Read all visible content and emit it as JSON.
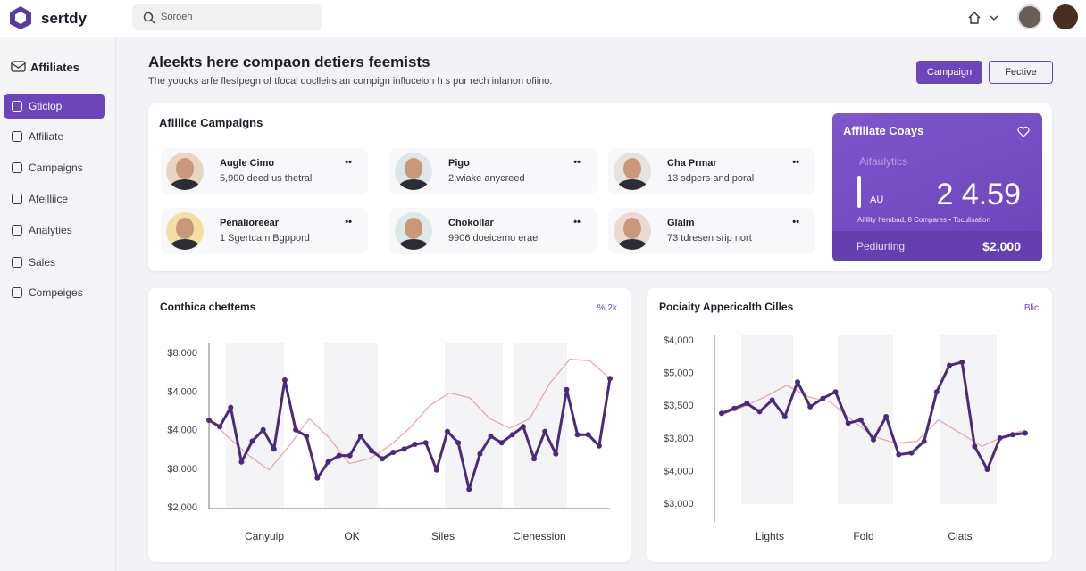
{
  "header": {
    "logo": "sertdy",
    "search_placeholder": "Soroeh"
  },
  "sidebar": {
    "heading": "Affiliates",
    "active": 0,
    "items": [
      "Gticlop",
      "Affiliate",
      "Campaigns",
      "Afeilliice",
      "Analyties",
      "Sales",
      "Compeiges"
    ]
  },
  "page": {
    "title": "Aleekts here compaon detiers feemists",
    "subtitle": "The youcks arfe flesfpegn of tfocal doclleirs an compign influceion h s pur rech inlanon ofiino.",
    "buttons": [
      "Campaign",
      "Fective"
    ]
  },
  "campaigns": {
    "title": "Afillice Campaigns",
    "items": [
      {
        "name": "Augle Cimo",
        "description": "5,900 deed us thetral"
      },
      {
        "name": "Pigo",
        "description": "2,wiake anycreed"
      },
      {
        "name": "Cha Prmar",
        "description": "13 sdpers and poral"
      },
      {
        "name": "Penalioreear",
        "description": "1 Sgertcam Bgppord"
      },
      {
        "name": "Chokollar",
        "description": "9906 doeicemo erael"
      },
      {
        "name": "Glalm",
        "description": "73 tdresen srip nort"
      }
    ]
  },
  "summary": {
    "title": "Affiliate Coays",
    "label": "Aifaulytics",
    "tag": "AU",
    "value": "2 4.59",
    "caption": "Aifility Ifembad, 8 Compares • Toculisation",
    "footer_label": "Pediurting",
    "footer_value": "$2,000"
  },
  "charts": [
    {
      "type": "line",
      "title": "Conthica chettems",
      "corner": "%,2k",
      "y_labels": [
        "$8,000",
        "$4,000",
        "$4,000",
        "$8,000",
        "$2,000"
      ],
      "categories": [
        "Canyuip",
        "OK",
        "Siles",
        "Clenession"
      ],
      "ylim": [
        0,
        100
      ],
      "series": [
        {
          "color": "#e3a4ae",
          "markers": false,
          "values": [
            56,
            44,
            33,
            24,
            39,
            56,
            44,
            28,
            31,
            39,
            50,
            64,
            72,
            69,
            56,
            50,
            56,
            78,
            93,
            92,
            81
          ]
        },
        {
          "color": "#4b2a7b",
          "markers": true,
          "values": [
            55,
            51,
            63,
            29,
            42,
            49,
            37,
            80,
            49,
            45,
            19,
            29,
            33,
            33,
            45,
            36,
            31,
            35,
            37,
            40,
            41,
            24,
            48,
            41,
            12,
            34,
            45,
            41,
            46,
            51,
            31,
            48,
            34,
            74,
            46,
            46,
            39,
            81
          ]
        }
      ]
    },
    {
      "type": "line",
      "title": "Pociaity Appericalth Cilles",
      "corner": "Blic",
      "y_labels": [
        "$4,000",
        "$5,000",
        "$3,500",
        "$3,800",
        "$4,000",
        "$3,000"
      ],
      "categories": [
        "Lights",
        "Fold",
        "Clats"
      ],
      "ylim": [
        0,
        100
      ],
      "series": [
        {
          "color": "#e3a4ae",
          "markers": false,
          "values": [
            54,
            59,
            65,
            72,
            65,
            62,
            51,
            41,
            37,
            38,
            51,
            43,
            35,
            41,
            45
          ]
        },
        {
          "color": "#4b2a7b",
          "markers": true,
          "values": [
            55,
            58,
            61,
            56,
            63,
            53,
            74,
            59,
            64,
            68,
            49,
            51,
            39,
            53,
            30,
            31,
            38,
            68,
            84,
            86,
            35,
            21,
            40,
            42,
            43
          ]
        }
      ]
    }
  ]
}
